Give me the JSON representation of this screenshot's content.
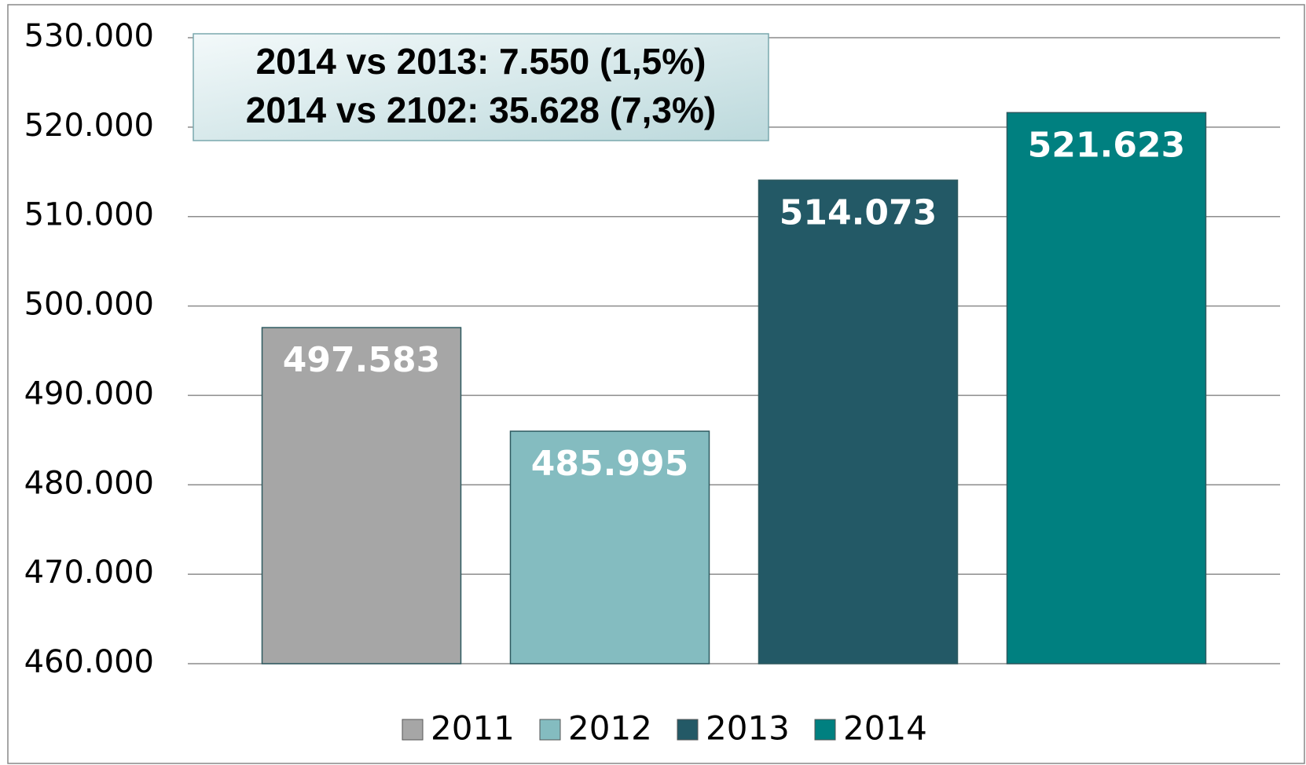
{
  "chart_data": {
    "type": "bar",
    "series": [
      {
        "name": "2011",
        "color": "#a6a6a6",
        "values": [
          497583
        ],
        "value_labels": [
          "497.583"
        ]
      },
      {
        "name": "2012",
        "color": "#84bcc0",
        "values": [
          485995
        ],
        "value_labels": [
          "485.995"
        ]
      },
      {
        "name": "2013",
        "color": "#235966",
        "values": [
          514073
        ],
        "value_labels": [
          "514.073"
        ]
      },
      {
        "name": "2014",
        "color": "#008080",
        "values": [
          521623
        ],
        "value_labels": [
          "521.623"
        ]
      }
    ],
    "annotations": [
      "2014 vs 2013: 7.550 (1,5%)",
      "2014 vs 2102: 35.628 (7,3%)"
    ],
    "ylim": [
      460000,
      530000
    ],
    "yticks": [
      {
        "value": 460000,
        "label": "460.000"
      },
      {
        "value": 470000,
        "label": "470.000"
      },
      {
        "value": 480000,
        "label": "480.000"
      },
      {
        "value": 490000,
        "label": "490.000"
      },
      {
        "value": 500000,
        "label": "500.000"
      },
      {
        "value": 510000,
        "label": "510.000"
      },
      {
        "value": 520000,
        "label": "520.000"
      },
      {
        "value": 530000,
        "label": "530.000"
      }
    ],
    "grid": true,
    "legend": "bottom"
  }
}
